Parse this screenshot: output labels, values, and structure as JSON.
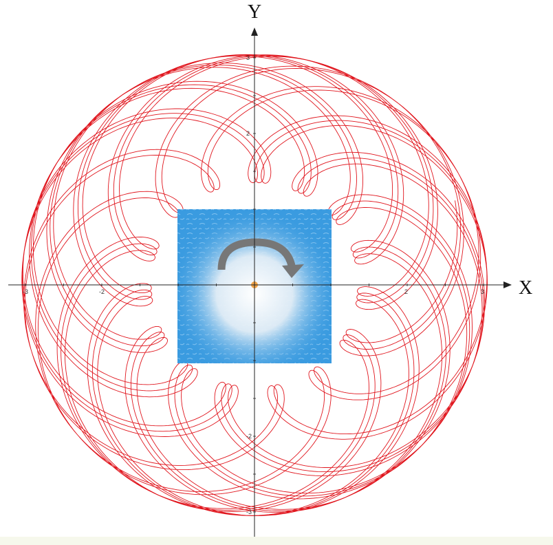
{
  "diagram": {
    "axes": {
      "x_title": "X",
      "y_title": "Y",
      "x_tick_labels": [
        {
          "value": -3,
          "text": "-3"
        },
        {
          "value": -2,
          "text": "-2"
        },
        {
          "value": 2,
          "text": "2"
        },
        {
          "value": 3,
          "text": "3"
        }
      ],
      "y_tick_labels": [
        {
          "value": 3,
          "text": "3"
        },
        {
          "value": 2,
          "text": "2"
        },
        {
          "value": -2,
          "text": "-2"
        },
        {
          "value": -3,
          "text": "-3"
        }
      ],
      "x_range": [
        -3.2,
        3.3
      ],
      "y_range": [
        -3.3,
        3.3
      ]
    },
    "curve": {
      "color": "#e0141c",
      "description_type": "epicycle-rosette",
      "r_large": 2.2,
      "r_small": 0.85,
      "freq_ratio": 31.4,
      "t_max": 120
    },
    "center_image": {
      "icon": "rotate-arrow-icon",
      "bg_color": "#3a9be0",
      "arrow_color": "#777777",
      "dot_color": "#f2a64a"
    }
  }
}
